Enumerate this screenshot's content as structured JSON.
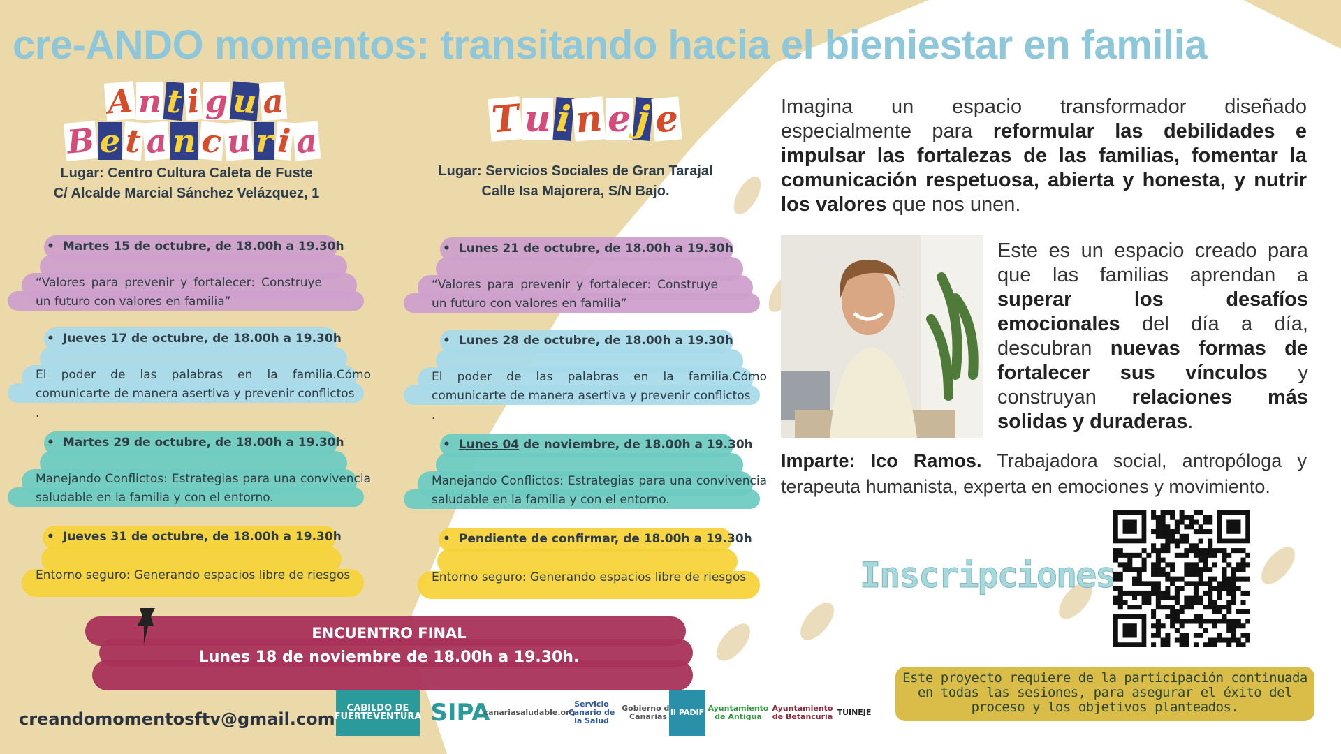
{
  "title": "cre-ANDO momentos: transitando hacia el bieniestar en familia",
  "colors": {
    "background": "#ecd9a9",
    "title": "#8ec7d9",
    "pink": "#cfa0cc",
    "blue": "#a9dbea",
    "teal": "#6fcbc1",
    "yellow": "#f7d33a",
    "final": "#a8315a",
    "note": "#d9bd48"
  },
  "locations": [
    {
      "name_lines": [
        "Antigua",
        "Betancuria"
      ],
      "place": "Lugar: Centro Cultura Caleta de Fuste",
      "address": "C/ Alcalde Marcial Sánchez Velázquez, 1",
      "sessions": [
        {
          "date": "Martes 15 de octubre, de 18.00h a 19.30h",
          "topic": "“Valores para prevenir y fortalecer: Construye un futuro con valores en familia”"
        },
        {
          "date": "Jueves 17 de octubre, de 18.00h a 19.30h",
          "topic": "El poder de las palabras en la familia.Cómo comunicarte de manera asertiva y prevenir conflictos",
          "trailing": "."
        },
        {
          "date": "Martes 29 de octubre, de 18.00h a 19.30h",
          "topic": "Manejando Conflictos: Estrategias para una convivencia saludable en la familia y con el entorno."
        },
        {
          "date": "Jueves 31 de octubre, de 18.00h a 19.30h",
          "topic": "Entorno seguro: Generando espacios libre de riesgos"
        }
      ]
    },
    {
      "name_lines": [
        "Tuineje"
      ],
      "place": "Lugar: Servicios Sociales de Gran Tarajal",
      "address": "Calle Isa Majorera, S/N Bajo.",
      "sessions": [
        {
          "date": "Lunes 21 de octubre, de 18.00h a 19.30h",
          "topic": "“Valores para prevenir y fortalecer: Construye un futuro con valores en familia”"
        },
        {
          "date": "Lunes 28 de octubre, de 18.00h a 19.30h",
          "topic": "El poder de las palabras en la familia.Cómo comunicarte de manera asertiva y prevenir conflictos",
          "trailing": "."
        },
        {
          "date_underlined": "Lunes 04",
          "date": " de noviembre, de 18.00h a 19.30h",
          "topic": "Manejando Conflictos: Estrategias para una convivencia saludable en la familia y con el entorno."
        },
        {
          "date": "Pendiente de confirmar, de 18.00h a 19.30h",
          "topic": "Entorno seguro: Generando espacios libre de riesgos"
        }
      ]
    }
  ],
  "final": {
    "title": "ENCUENTRO FINAL",
    "date": "Lunes 18 de noviembre de 18.00h a 19.30h."
  },
  "intro": {
    "p1": "Imagina un espacio transformador diseñado especialmente para ",
    "b1": "reformular las debilidades e impulsar las fortalezas de las familias, fomentar la comunicación respetuosa, abierta y honesta, y nutrir los valores",
    "p2": " que nos unen."
  },
  "space": {
    "a": "Este es un espacio creado para que las familias aprendan a ",
    "b": "superar los desafíos emocionales",
    "c": " del día a día, descubran ",
    "d": "nuevas formas de fortalecer sus vínculos",
    "e": " y construyan ",
    "f": "relaciones más solidas y duraderas",
    "g": "."
  },
  "teacher": {
    "label": "Imparte: Ico Ramos.",
    "bio": " Trabajadora social, antropóloga y terapeuta humanista, experta en emociones y movimiento."
  },
  "registration": {
    "label": "Inscripciones:",
    "qr_icon": "qr-code"
  },
  "note": "Este proyecto requiere de la participación continuada en todas las sesiones, para asegurar el éxito del proceso y los objetivos planteados.",
  "email": "creandomomentosftv@gmail.com",
  "logos": [
    "CABILDO DE FUERTEVENTURA",
    "SIPA",
    "canariasaludable.org",
    "Servicio Canario de la Salud",
    "Gobierno de Canarias",
    "II PADIF",
    "Ayuntamiento de Antigua",
    "Ayuntamiento de Betancuria",
    "TUINEJE"
  ]
}
